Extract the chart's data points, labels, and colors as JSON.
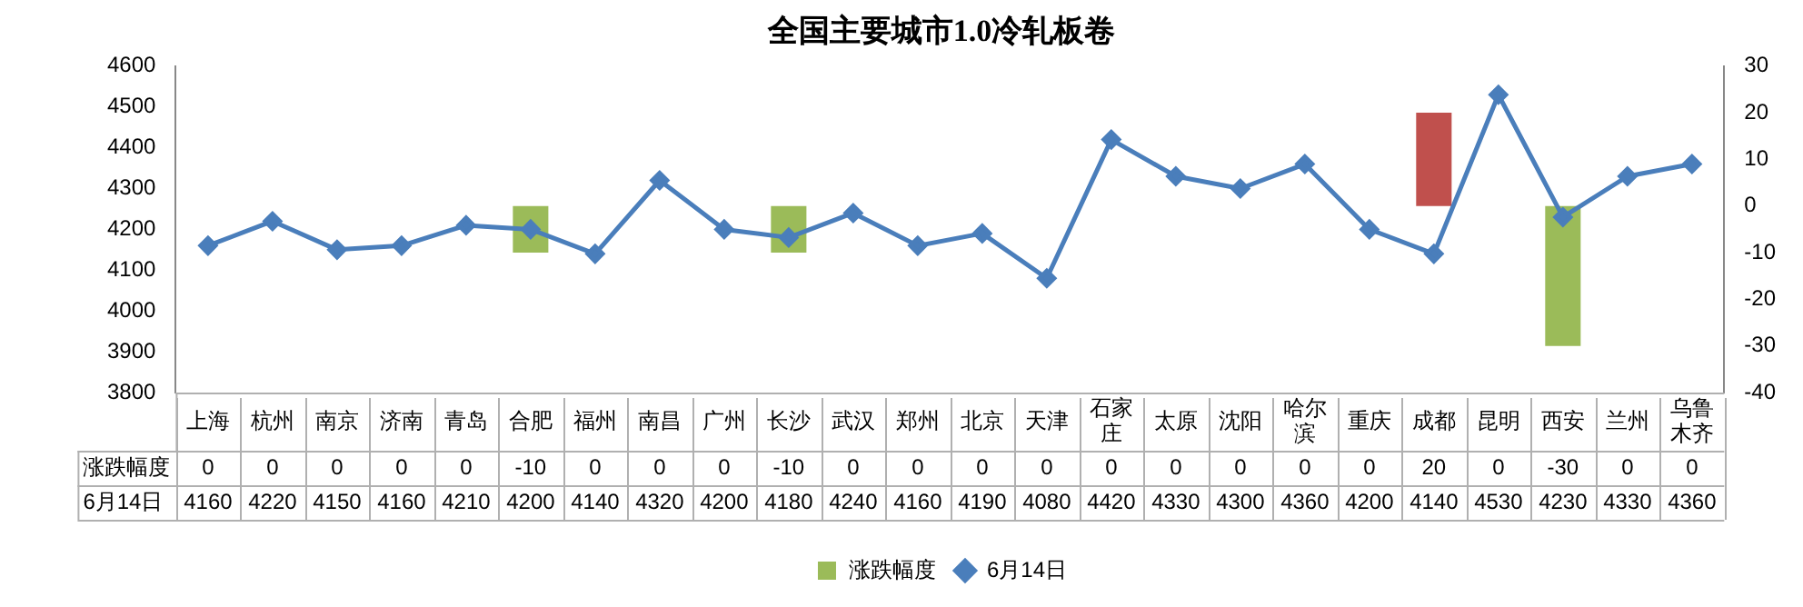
{
  "chart_data": {
    "type": "bar",
    "title": "全国主要城市1.0冷轧板卷",
    "categories": [
      "上海",
      "杭州",
      "南京",
      "济南",
      "青岛",
      "合肥",
      "福州",
      "南昌",
      "广州",
      "长沙",
      "武汉",
      "郑州",
      "北京",
      "天津",
      "石家庄",
      "太原",
      "沈阳",
      "哈尔滨",
      "重庆",
      "成都",
      "昆明",
      "西安",
      "兰州",
      "乌鲁木齐"
    ],
    "series": [
      {
        "name": "涨跌幅度",
        "axis": "y2",
        "color": "#9bbb59",
        "colors": [
          "#9bbb59",
          "#9bbb59",
          "#9bbb59",
          "#9bbb59",
          "#9bbb59",
          "#9bbb59",
          "#9bbb59",
          "#9bbb59",
          "#9bbb59",
          "#9bbb59",
          "#9bbb59",
          "#9bbb59",
          "#9bbb59",
          "#9bbb59",
          "#9bbb59",
          "#9bbb59",
          "#9bbb59",
          "#9bbb59",
          "#9bbb59",
          "#c0504d",
          "#9bbb59",
          "#9bbb59",
          "#9bbb59",
          "#9bbb59"
        ],
        "values": [
          0,
          0,
          0,
          0,
          0,
          -10,
          0,
          0,
          0,
          -10,
          0,
          0,
          0,
          0,
          0,
          0,
          0,
          0,
          0,
          20,
          0,
          -30,
          0,
          0
        ]
      },
      {
        "name": "6月14日",
        "type": "line",
        "color": "#4a7ebb",
        "values": [
          4160,
          4220,
          4150,
          4160,
          4210,
          4200,
          4140,
          4320,
          4200,
          4180,
          4240,
          4160,
          4190,
          4080,
          4420,
          4330,
          4300,
          4360,
          4200,
          4140,
          4530,
          4230,
          4330,
          4360
        ]
      }
    ],
    "ylim": [
      3800,
      4600
    ],
    "yticks": [
      3800,
      3900,
      4000,
      4100,
      4200,
      4300,
      4400,
      4500,
      4600
    ],
    "y2lim": [
      -40,
      30
    ],
    "y2ticks": [
      -40,
      -30,
      -20,
      -10,
      0,
      10,
      20,
      30
    ],
    "legend": "bottom",
    "data_labels": true,
    "marker": "diamond"
  }
}
